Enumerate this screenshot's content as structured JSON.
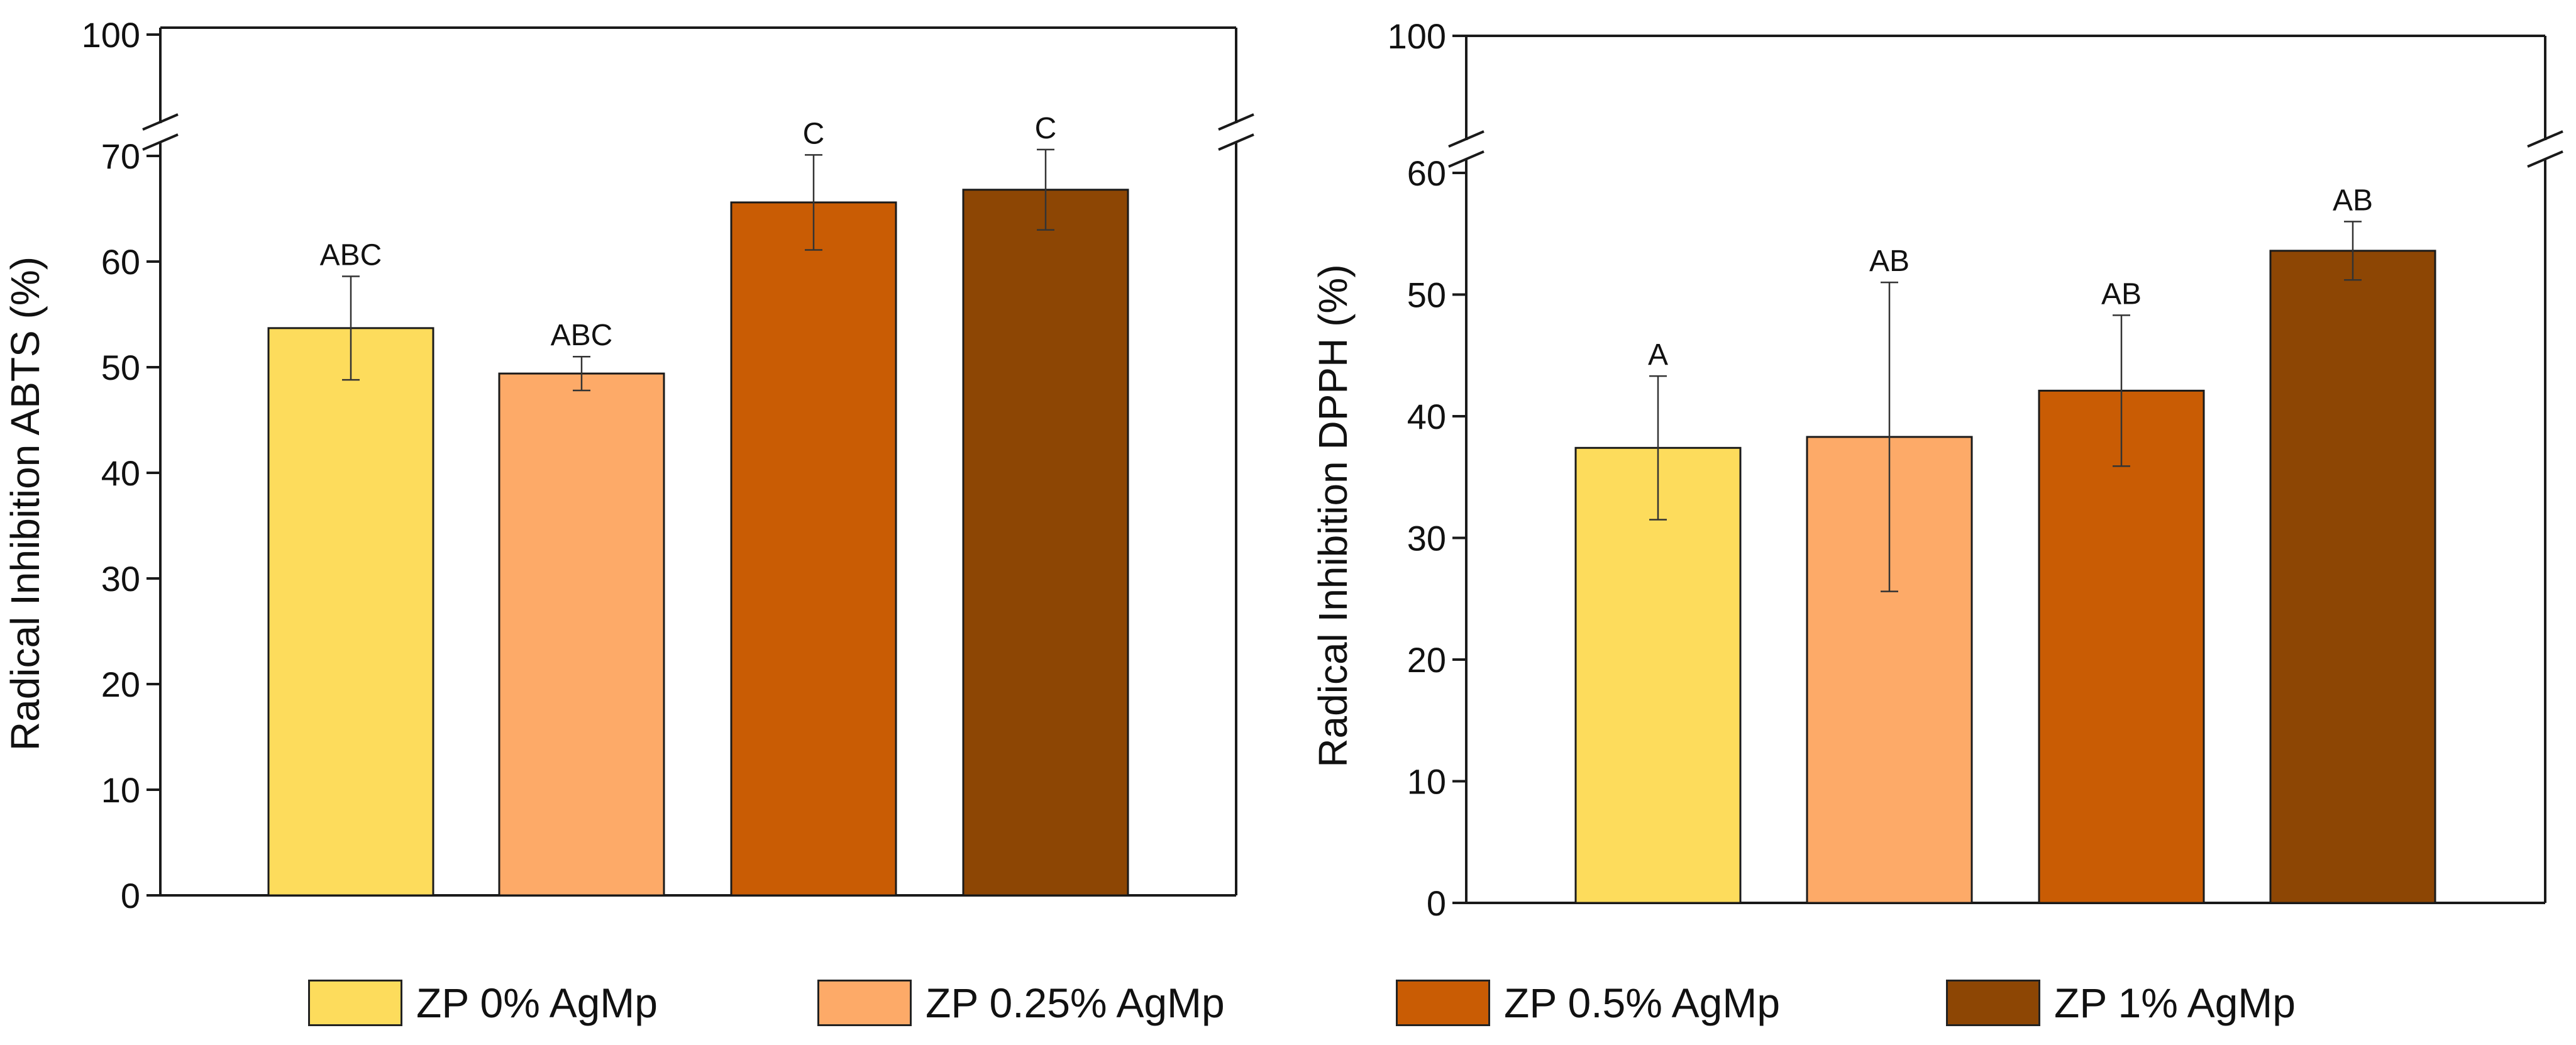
{
  "chart_data": [
    {
      "type": "bar",
      "title": "",
      "xlabel": "",
      "ylabel": "Radical Inhibition ABTS (%)",
      "ylim": [
        0,
        100
      ],
      "axis_break": [
        70,
        100
      ],
      "yticks": [
        0,
        10,
        20,
        30,
        40,
        50,
        60,
        70,
        100
      ],
      "ytick_labels": [
        "0",
        "10",
        "20",
        "30",
        "40",
        "50",
        "60",
        "70",
        "100"
      ],
      "categories": [
        "ZP 0% AgMp",
        "ZP 0.25% AgMp",
        "ZP 0.5% AgMp",
        "ZP 1% AgMp"
      ],
      "values": [
        53.7,
        49.4,
        65.6,
        66.8
      ],
      "errors": [
        4.9,
        1.6,
        4.5,
        3.8
      ],
      "labels": [
        "ABC",
        "ABC",
        "C",
        "C"
      ]
    },
    {
      "type": "bar",
      "title": "",
      "xlabel": "",
      "ylabel": "Radical Inhibition DPPH (%)",
      "ylim": [
        0,
        100
      ],
      "axis_break": [
        60,
        100
      ],
      "yticks": [
        0,
        10,
        20,
        30,
        40,
        50,
        60,
        100
      ],
      "ytick_labels": [
        "0",
        "10",
        "20",
        "30",
        "40",
        "50",
        "60",
        "100"
      ],
      "categories": [
        "ZP 0% AgMp",
        "ZP 0.25% AgMp",
        "ZP 0.5% AgMp",
        "ZP 1% AgMp"
      ],
      "values": [
        37.4,
        38.3,
        42.1,
        53.6
      ],
      "errors": [
        5.9,
        12.7,
        6.2,
        2.4
      ],
      "labels": [
        "A",
        "AB",
        "AB",
        "AB"
      ]
    }
  ],
  "legend": {
    "items": [
      {
        "label": "ZP 0% AgMp",
        "color": "#FDDC5C"
      },
      {
        "label": "ZP 0.25% AgMp",
        "color": "#FDAA68"
      },
      {
        "label": "ZP 0.5% AgMp",
        "color": "#C95C04"
      },
      {
        "label": "ZP 1% AgMp",
        "color": "#8D4604"
      }
    ]
  }
}
